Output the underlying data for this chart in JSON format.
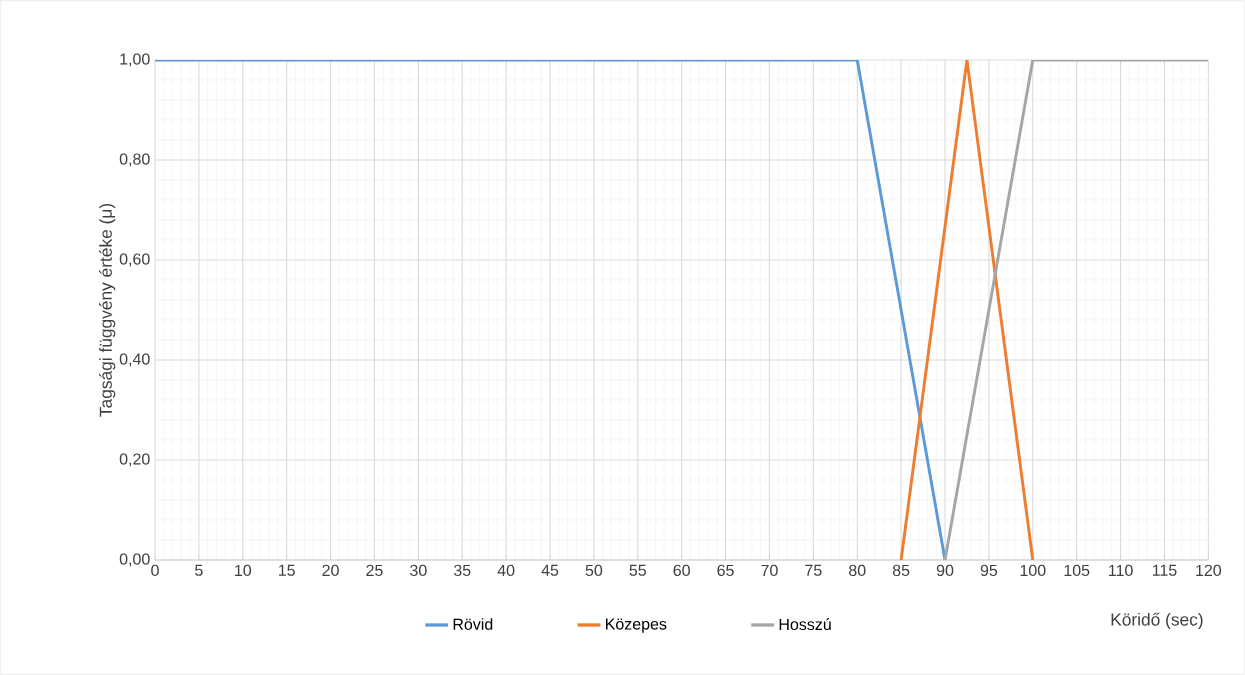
{
  "chart_data": {
    "type": "line",
    "xlabel": "Köridő (sec)",
    "ylabel": "Tagsági függvény értéke (μ)",
    "series": [
      {
        "name": "Rövid",
        "color": "#5b9bd5",
        "x": [
          0,
          80,
          90
        ],
        "values": [
          1,
          1,
          0
        ]
      },
      {
        "name": "Közepes",
        "color": "#ed7d31",
        "x": [
          85,
          92.5,
          100
        ],
        "values": [
          0,
          1,
          0
        ]
      },
      {
        "name": "Hosszú",
        "color": "#a5a5a5",
        "x": [
          90,
          100,
          120
        ],
        "values": [
          0,
          1,
          1
        ]
      }
    ],
    "xlim": [
      0,
      120
    ],
    "xticks": [
      0,
      5,
      10,
      15,
      20,
      25,
      30,
      35,
      40,
      45,
      50,
      55,
      60,
      65,
      70,
      75,
      80,
      85,
      90,
      95,
      100,
      105,
      110,
      115,
      120
    ],
    "ylim": [
      0,
      1
    ],
    "yticks": [
      {
        "value": 0,
        "label": "0,00"
      },
      {
        "value": 0.2,
        "label": "0,20"
      },
      {
        "value": 0.4,
        "label": "0,40"
      },
      {
        "value": 0.6,
        "label": "0,60"
      },
      {
        "value": 0.8,
        "label": "0,80"
      },
      {
        "value": 1,
        "label": "1,00"
      }
    ],
    "grid": true,
    "legend": "bottom",
    "marker": "none",
    "line_style": "solid"
  }
}
